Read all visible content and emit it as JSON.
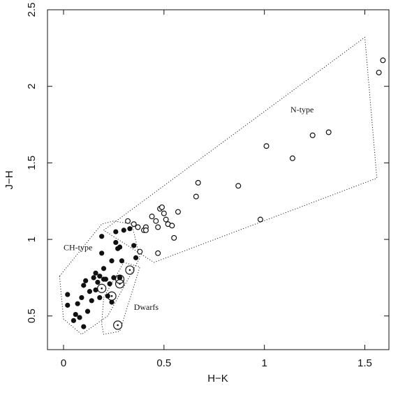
{
  "chart_data": {
    "type": "scatter",
    "xlabel": "H−K",
    "ylabel": "J−H",
    "xlim": [
      -0.08,
      1.62
    ],
    "ylim": [
      0.28,
      2.5
    ],
    "xticks": [
      0,
      0.5,
      1,
      1.5
    ],
    "xtick_labels": [
      "0",
      "0.5",
      "1",
      "1.5"
    ],
    "yticks": [
      0.5,
      1,
      1.5,
      2,
      2.5
    ],
    "ytick_labels": [
      "0.5",
      "1",
      "1.5",
      "2",
      "2.5"
    ],
    "grid": false,
    "legend": "none",
    "annotations": [
      {
        "text": "N-type",
        "x": 1.13,
        "y": 1.83
      },
      {
        "text": "CH-type",
        "x": 0.0,
        "y": 0.93
      },
      {
        "text": "Dwarfs",
        "x": 0.35,
        "y": 0.54
      }
    ],
    "regions": [
      {
        "label": "N-type",
        "polygon": [
          [
            0.2,
            1.06
          ],
          [
            1.5,
            2.32
          ],
          [
            1.56,
            1.4
          ],
          [
            0.45,
            0.85
          ]
        ]
      },
      {
        "label": "CH-type",
        "polygon": [
          [
            -0.02,
            0.76
          ],
          [
            0.0,
            0.48
          ],
          [
            0.09,
            0.38
          ],
          [
            0.22,
            0.5
          ],
          [
            0.38,
            0.88
          ],
          [
            0.34,
            1.1
          ],
          [
            0.25,
            1.12
          ],
          [
            0.19,
            1.1
          ]
        ]
      },
      {
        "label": "Dwarfs",
        "polygon": [
          [
            0.2,
            0.62
          ],
          [
            0.3,
            0.85
          ],
          [
            0.38,
            0.82
          ],
          [
            0.28,
            0.4
          ],
          [
            0.2,
            0.38
          ],
          [
            0.19,
            0.45
          ]
        ]
      }
    ],
    "series": [
      {
        "marker": "filled-circle",
        "points": [
          [
            0.02,
            0.64
          ],
          [
            0.02,
            0.57
          ],
          [
            0.05,
            0.47
          ],
          [
            0.06,
            0.51
          ],
          [
            0.07,
            0.58
          ],
          [
            0.08,
            0.49
          ],
          [
            0.1,
            0.43
          ],
          [
            0.09,
            0.62
          ],
          [
            0.1,
            0.7
          ],
          [
            0.11,
            0.73
          ],
          [
            0.12,
            0.53
          ],
          [
            0.13,
            0.66
          ],
          [
            0.14,
            0.6
          ],
          [
            0.15,
            0.75
          ],
          [
            0.16,
            0.78
          ],
          [
            0.16,
            0.67
          ],
          [
            0.17,
            0.72
          ],
          [
            0.18,
            0.62
          ],
          [
            0.18,
            0.76
          ],
          [
            0.19,
            0.91
          ],
          [
            0.2,
            0.81
          ],
          [
            0.19,
            1.02
          ],
          [
            0.21,
            0.74
          ],
          [
            0.22,
            0.63
          ],
          [
            0.23,
            0.71
          ],
          [
            0.24,
            0.59
          ],
          [
            0.24,
            0.86
          ],
          [
            0.25,
            0.75
          ],
          [
            0.26,
            0.98
          ],
          [
            0.26,
            1.05
          ],
          [
            0.27,
            0.94
          ],
          [
            0.28,
            0.95
          ],
          [
            0.29,
            0.86
          ],
          [
            0.3,
            1.06
          ],
          [
            0.33,
            1.07
          ],
          [
            0.35,
            0.96
          ],
          [
            0.36,
            0.88
          ],
          [
            0.2,
            0.74
          ],
          [
            0.28,
            0.75
          ]
        ]
      },
      {
        "marker": "open-circle",
        "points": [
          [
            0.32,
            1.12
          ],
          [
            0.35,
            1.1
          ],
          [
            0.37,
            1.08
          ],
          [
            0.38,
            0.92
          ],
          [
            0.4,
            1.06
          ],
          [
            0.41,
            1.08
          ],
          [
            0.41,
            1.06
          ],
          [
            0.44,
            1.15
          ],
          [
            0.46,
            1.12
          ],
          [
            0.47,
            1.08
          ],
          [
            0.48,
            1.2
          ],
          [
            0.49,
            1.21
          ],
          [
            0.5,
            1.17
          ],
          [
            0.51,
            1.13
          ],
          [
            0.52,
            1.1
          ],
          [
            0.54,
            1.09
          ],
          [
            0.55,
            1.01
          ],
          [
            0.57,
            1.18
          ],
          [
            0.47,
            0.91
          ],
          [
            0.66,
            1.28
          ],
          [
            0.67,
            1.37
          ],
          [
            0.87,
            1.35
          ],
          [
            0.98,
            1.13
          ],
          [
            1.01,
            1.61
          ],
          [
            1.14,
            1.53
          ],
          [
            1.24,
            1.68
          ],
          [
            1.32,
            1.7
          ],
          [
            1.57,
            2.09
          ],
          [
            1.59,
            2.17
          ]
        ]
      },
      {
        "marker": "dotted-circle",
        "points": [
          [
            0.19,
            0.68
          ],
          [
            0.24,
            0.63
          ],
          [
            0.27,
            0.44
          ],
          [
            0.28,
            0.74
          ],
          [
            0.28,
            0.71
          ],
          [
            0.33,
            0.8
          ]
        ]
      }
    ]
  }
}
